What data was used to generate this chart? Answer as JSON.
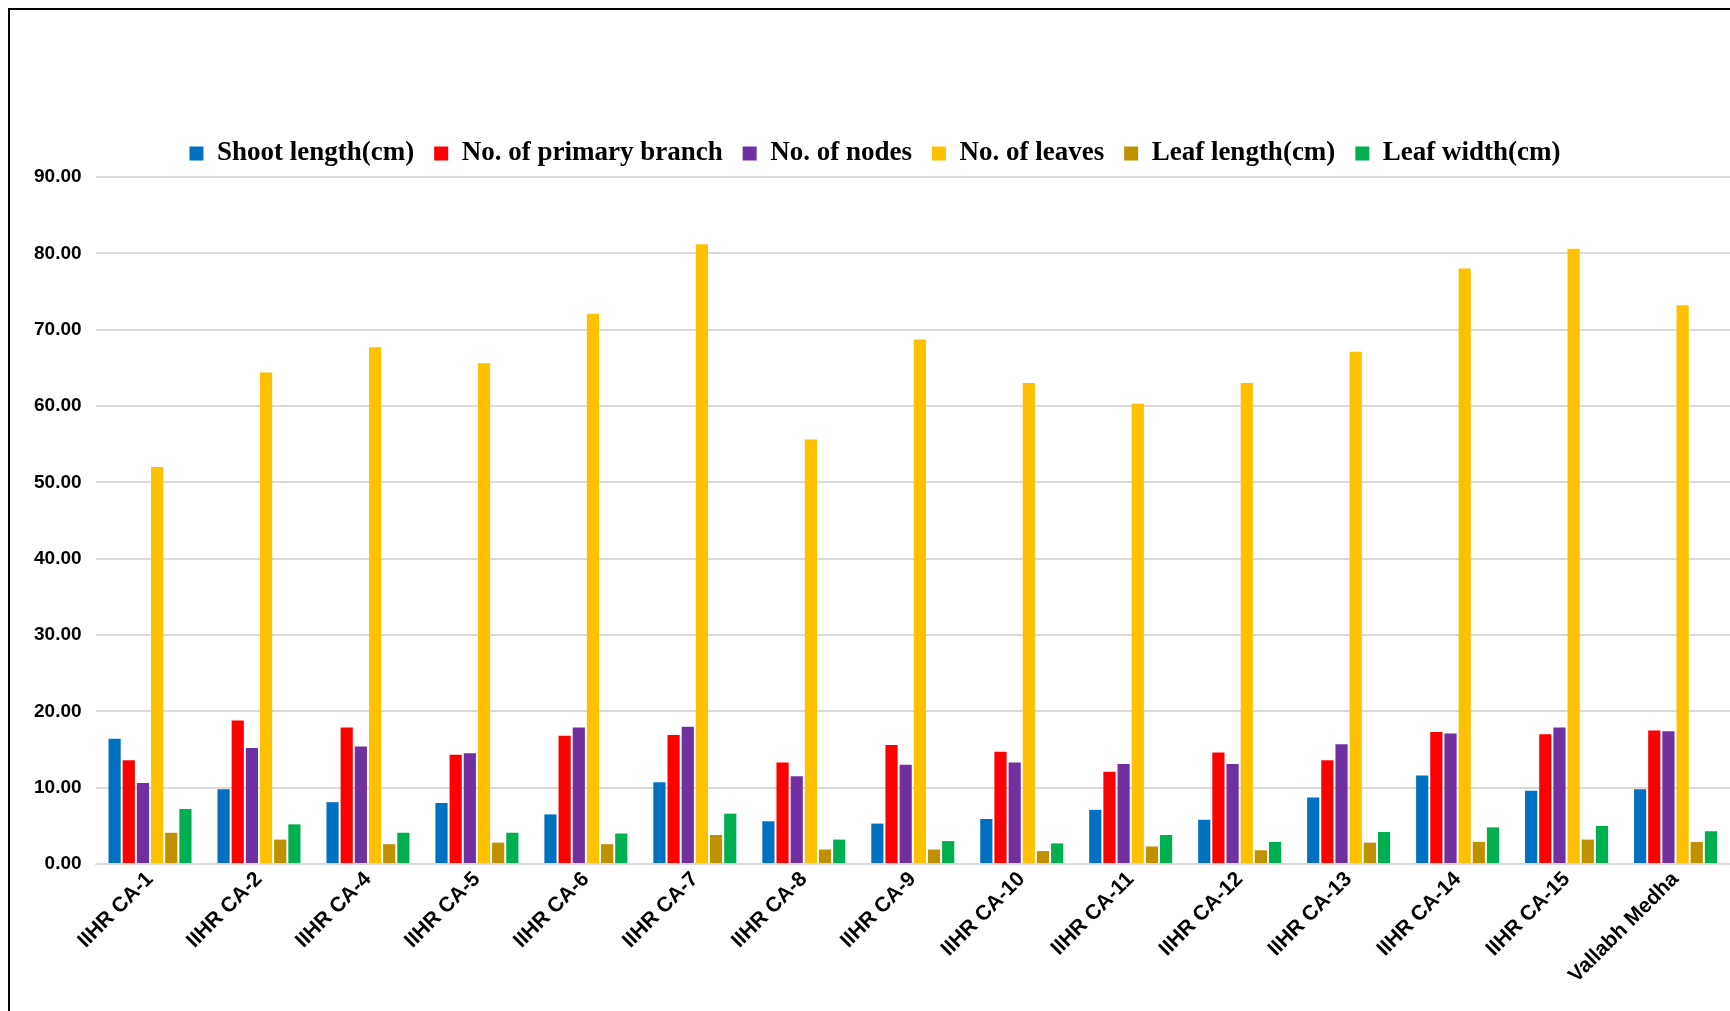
{
  "chart_data": {
    "type": "bar",
    "categories": [
      "IIHR CA-1",
      "IIHR CA-2",
      "IIHR CA-4",
      "IIHR CA-5",
      "IIHR CA-6",
      "IIHR CA-7",
      "IIHR CA-8",
      "IIHR CA-9",
      "IIHR CA-10",
      "IIHR CA-11",
      "IIHR CA-12",
      "IIHR CA-13",
      "IIHR CA-14",
      "IIHR CA-15",
      "Vallabh Medha"
    ],
    "series": [
      {
        "name": "Shoot length(cm)",
        "color": "#0070c0",
        "values": [
          16.4,
          9.8,
          8.1,
          8.0,
          6.5,
          10.7,
          5.6,
          5.3,
          5.9,
          7.1,
          5.8,
          8.7,
          11.6,
          9.6,
          9.8
        ]
      },
      {
        "name": "No. of primary branch",
        "color": "#ff0000",
        "values": [
          13.6,
          18.8,
          17.9,
          14.3,
          16.8,
          16.9,
          13.3,
          15.6,
          14.7,
          12.1,
          14.6,
          13.6,
          17.3,
          17.0,
          17.5
        ]
      },
      {
        "name": "No. of nodes",
        "color": "#7030a0",
        "values": [
          10.6,
          15.2,
          15.4,
          14.5,
          17.9,
          18.0,
          11.5,
          13.0,
          13.3,
          13.1,
          13.1,
          15.7,
          17.1,
          17.9,
          17.4
        ]
      },
      {
        "name": "No. of leaves",
        "color": "#ffc000",
        "values": [
          52.0,
          64.4,
          67.7,
          65.6,
          72.1,
          81.2,
          55.6,
          68.7,
          63.0,
          60.3,
          63.0,
          67.1,
          78.0,
          80.6,
          73.2
        ]
      },
      {
        "name": "Leaf length(cm)",
        "color": "#bf9000",
        "values": [
          4.1,
          3.2,
          2.6,
          2.8,
          2.6,
          3.8,
          1.9,
          1.9,
          1.7,
          2.3,
          1.8,
          2.8,
          2.9,
          3.2,
          2.9
        ]
      },
      {
        "name": "Leaf width(cm)",
        "color": "#00b050",
        "values": [
          7.2,
          5.2,
          4.1,
          4.1,
          4.0,
          6.6,
          3.2,
          3.0,
          2.7,
          3.8,
          2.9,
          4.2,
          4.8,
          5.0,
          4.3
        ]
      }
    ],
    "ylim": [
      0,
      90
    ],
    "yticks": [
      {
        "value": 0,
        "label": "0.00"
      },
      {
        "value": 10,
        "label": "10.00"
      },
      {
        "value": 20,
        "label": "20.00"
      },
      {
        "value": 30,
        "label": "30.00"
      },
      {
        "value": 40,
        "label": "40.00"
      },
      {
        "value": 50,
        "label": "50.00"
      },
      {
        "value": 60,
        "label": "60.00"
      },
      {
        "value": 70,
        "label": "70.00"
      },
      {
        "value": 80,
        "label": "80.00"
      },
      {
        "value": 90,
        "label": "90.00"
      }
    ],
    "grid": "y",
    "legend": "top"
  }
}
